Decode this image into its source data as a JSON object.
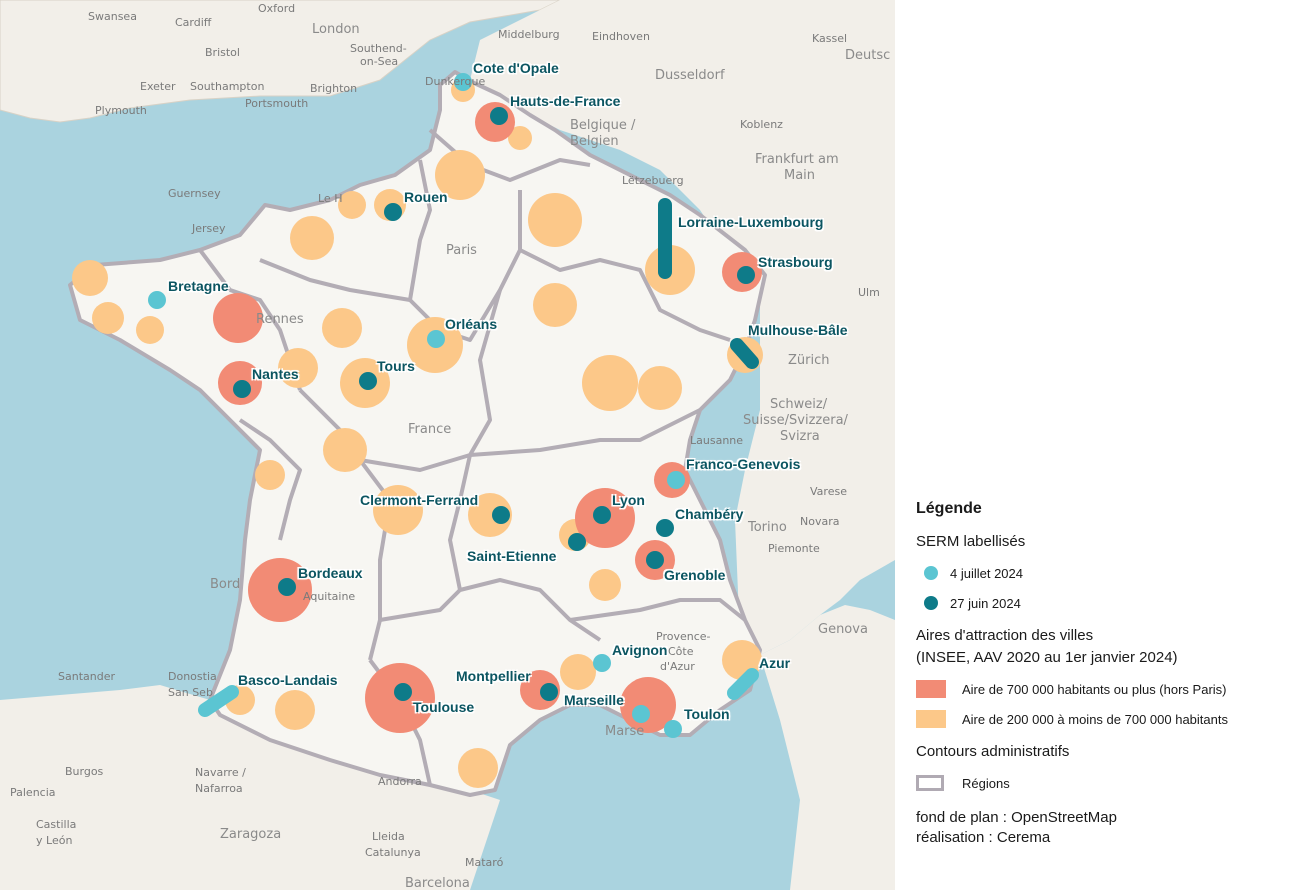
{
  "colors": {
    "sea": "#aad3df",
    "land": "#f2efe9",
    "france_land": "#f7f6f2",
    "large_area": "#f28b75",
    "medium_area": "#fcc889",
    "serm_july": "#5bc5d2",
    "serm_june": "#0e7b89",
    "region_border": "#b3adb5",
    "label_text": "#0b5561"
  },
  "map": {
    "serm_labels": {
      "cote_opale": "Cote d'Opale",
      "hauts_de_france": "Hauts-de-France",
      "rouen": "Rouen",
      "lorraine_luxembourg": "Lorraine-Luxembourg",
      "strasbourg": "Strasbourg",
      "bretagne": "Bretagne",
      "orleans": "Orléans",
      "mulhouse_bale": "Mulhouse-Bâle",
      "nantes": "Nantes",
      "tours": "Tours",
      "franco_genevois": "Franco-Genevois",
      "clermont_ferrand": "Clermont-Ferrand",
      "lyon": "Lyon",
      "chambery": "Chambéry",
      "saint_etienne": "Saint-Etienne",
      "grenoble": "Grenoble",
      "bordeaux": "Bordeaux",
      "avignon": "Avignon",
      "azur": "Azur",
      "basco_landais": "Basco-Landais",
      "montpellier": "Montpellier",
      "toulouse": "Toulouse",
      "marseille": "Marseille",
      "toulon": "Toulon"
    },
    "basemap_labels": {
      "swansea": "Swansea",
      "cardiff": "Cardiff",
      "oxford": "Oxford",
      "london": "London",
      "bristol": "Bristol",
      "southend": "Southend-",
      "on_sea": "on-Sea",
      "exeter": "Exeter",
      "southampton": "Southampton",
      "brighton": "Brighton",
      "plymouth": "Plymouth",
      "portsmouth": "Portsmouth",
      "middelburg": "Middelburg",
      "eindhoven": "Eindhoven",
      "dunkerque": "Dunkerque",
      "dusseldorf": "Dusseldorf",
      "kassel": "Kassel",
      "deutsch": "Deutsc",
      "belgique": "Belgique /",
      "belgien": "Belgien",
      "koblenz": "Koblenz",
      "frankfurt": "Frankfurt am",
      "main": "Main",
      "letzebuerg": "Lëtzebuerg",
      "guernsey": "Guernsey",
      "jersey": "Jersey",
      "paris": "Paris",
      "rennes": "Rennes",
      "france": "France",
      "zurich": "Zürich",
      "schweiz": "Schweiz/",
      "suisse": "Suisse/Svizzera/",
      "svizra": "Svizra",
      "lausanne": "Lausanne",
      "varese": "Varese",
      "novara": "Novara",
      "torino": "Torino",
      "piemonte": "Piemonte",
      "genova": "Genova",
      "santander": "Santander",
      "donostia": "Donostia",
      "san_seb": "San Seb",
      "burgos": "Burgos",
      "navarre": "Navarre /",
      "nafarroa": "Nafarroa",
      "palencia": "Palencia",
      "castilla": "Castilla",
      "y_leon": "y León",
      "zaragoza": "Zaragoza",
      "lleida": "Lleida",
      "catalunya": "Catalunya",
      "mataro": "Mataró",
      "barcelona": "Barcelona",
      "andorra": "Andorra",
      "aquitaine": "Aquitaine",
      "bordeaux_bg": "Bord",
      "toulouse_bg": "Toulouse",
      "provence": "Provence-",
      "cote_azur": "Côte",
      "d_azur": "d'Azur",
      "marseille_bg": "Marse",
      "ulm": "Ulm",
      "le_havre": "Le H"
    }
  },
  "legend": {
    "title": "Légende",
    "serm_header": "SERM labellisés",
    "serm_july": "4 juillet 2024",
    "serm_june": "27 juin 2024",
    "aav_header_1": "Aires d'attraction des villes",
    "aav_header_2": "(INSEE, AAV 2020 au 1er janvier 2024)",
    "aav_large": "Aire de 700 000 habitants ou plus (hors Paris)",
    "aav_medium": "Aire de 200 000 à moins de 700 000 habitants",
    "admin_header": "Contours administratifs",
    "regions": "Régions",
    "credit_basemap": "fond de plan :  OpenStreetMap",
    "credit_author": "réalisation : Cerema"
  }
}
